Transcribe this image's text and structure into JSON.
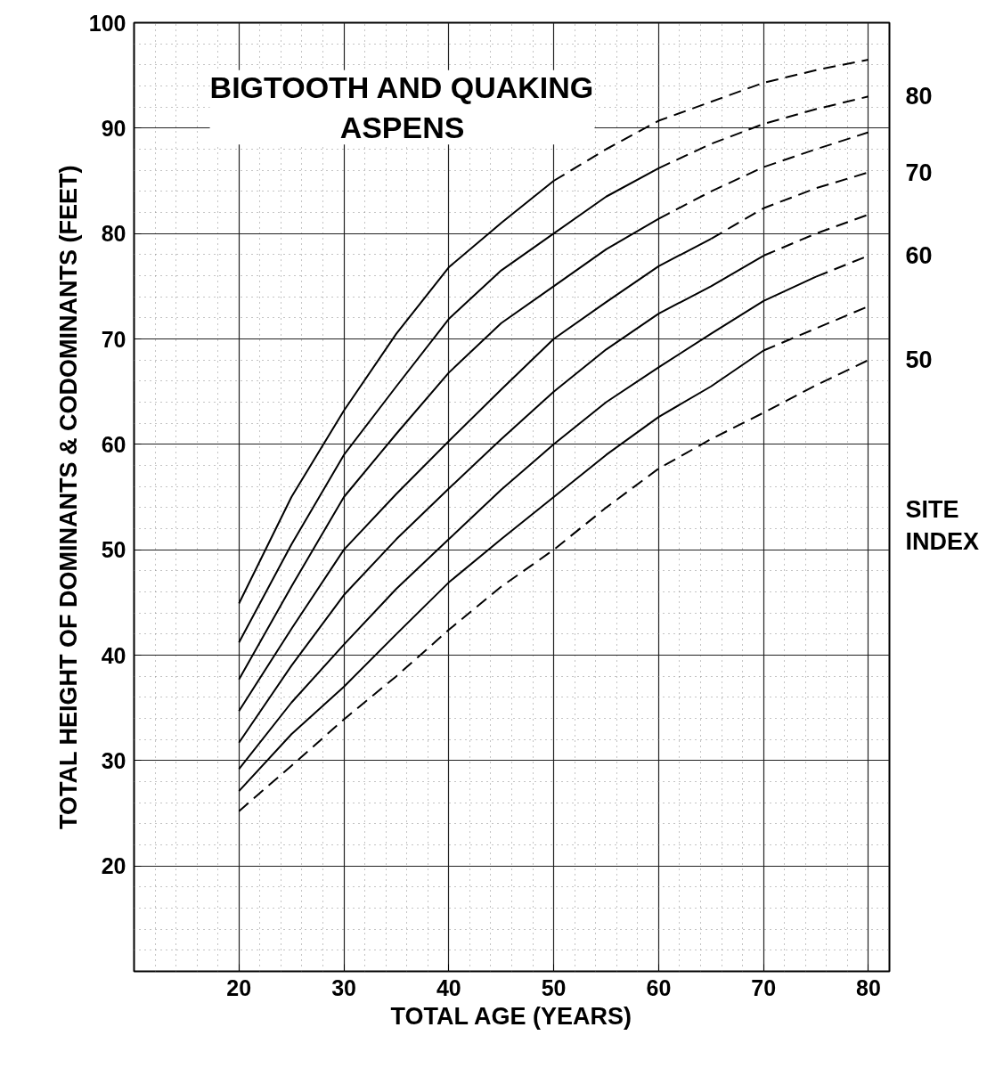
{
  "chart_data": {
    "type": "line",
    "title": "BIGTOOTH AND QUAKING\nASPENS",
    "xlabel": "TOTAL AGE (YEARS)",
    "ylabel": "TOTAL HEIGHT OF DOMINANTS & CODOMINANTS (FEET)",
    "annotations": [
      "SITE\nINDEX"
    ],
    "xlim": [
      10,
      82
    ],
    "ylim": [
      10,
      100
    ],
    "xticks": [
      20,
      30,
      40,
      50,
      60,
      70,
      80
    ],
    "yticks": [
      20,
      30,
      40,
      50,
      60,
      70,
      80,
      90,
      100
    ],
    "grid": true,
    "marker": "none",
    "series": [
      {
        "color": "#000000",
        "line_style": "solid",
        "x": [
          20,
          25,
          30,
          35,
          40,
          45,
          50
        ],
        "values": [
          44.9,
          55,
          63.2,
          70.5,
          76.8,
          81,
          85
        ]
      },
      {
        "color": "#000000",
        "line_style": "dashed",
        "x": [
          50,
          55,
          60,
          65,
          70,
          75,
          80
        ],
        "values": [
          85,
          88,
          90.7,
          92.5,
          94.3,
          95.5,
          96.5
        ]
      },
      {
        "color": "#000000",
        "line_style": "solid",
        "x": [
          20,
          25,
          30,
          35,
          40,
          45,
          50,
          55,
          60
        ],
        "values": [
          41.2,
          50.5,
          59.0,
          65.5,
          71.9,
          76.5,
          80,
          83.5,
          86.2
        ]
      },
      {
        "name": "80",
        "color": "#000000",
        "line_style": "dashed",
        "x": [
          60,
          65,
          70,
          75,
          80
        ],
        "values": [
          86.2,
          88.5,
          90.4,
          91.8,
          93.0
        ]
      },
      {
        "color": "#000000",
        "line_style": "solid",
        "x": [
          20,
          25,
          30,
          35,
          40,
          45,
          50,
          55,
          60
        ],
        "values": [
          37.7,
          46.5,
          55.0,
          61,
          66.8,
          71.5,
          75,
          78.5,
          81.4
        ]
      },
      {
        "color": "#000000",
        "line_style": "dashed",
        "x": [
          60,
          65,
          70,
          75,
          80
        ],
        "values": [
          81.4,
          84,
          86.3,
          88,
          89.6
        ]
      },
      {
        "color": "#000000",
        "line_style": "solid",
        "x": [
          20,
          25,
          30,
          35,
          40,
          45,
          50,
          55,
          60,
          65
        ],
        "values": [
          34.7,
          42.5,
          50.0,
          55.3,
          60.3,
          65.2,
          70,
          73.5,
          76.9,
          79.5
        ]
      },
      {
        "name": "70",
        "color": "#000000",
        "line_style": "dashed",
        "x": [
          65,
          70,
          75,
          80
        ],
        "values": [
          79.5,
          82.4,
          84.3,
          85.8
        ]
      },
      {
        "color": "#000000",
        "line_style": "solid",
        "x": [
          20,
          25,
          30,
          35,
          40,
          45,
          50,
          55,
          60,
          65,
          70
        ],
        "values": [
          31.7,
          39,
          45.7,
          51,
          55.8,
          60.5,
          65,
          69,
          72.4,
          75,
          77.9
        ]
      },
      {
        "color": "#000000",
        "line_style": "dashed",
        "x": [
          70,
          75,
          80
        ],
        "values": [
          77.9,
          80,
          81.8
        ]
      },
      {
        "color": "#000000",
        "line_style": "solid",
        "x": [
          20,
          25,
          30,
          35,
          40,
          45,
          50,
          55,
          60,
          65,
          70,
          75
        ],
        "values": [
          29.2,
          35.5,
          41.0,
          46.3,
          51.0,
          55.7,
          60,
          64,
          67.3,
          70.5,
          73.6,
          75.9
        ]
      },
      {
        "name": "60",
        "color": "#000000",
        "line_style": "dashed",
        "x": [
          75,
          80
        ],
        "values": [
          75.9,
          77.9
        ]
      },
      {
        "color": "#000000",
        "line_style": "solid",
        "x": [
          20,
          25,
          30,
          35,
          40,
          45,
          50,
          55,
          60,
          65,
          70
        ],
        "values": [
          27.1,
          32.5,
          37.0,
          42,
          46.9,
          51,
          55,
          59,
          62.6,
          65.5,
          68.9
        ]
      },
      {
        "color": "#000000",
        "line_style": "dashed",
        "x": [
          70,
          75,
          80
        ],
        "values": [
          68.9,
          71,
          73.1
        ]
      },
      {
        "name": "50",
        "color": "#000000",
        "line_style": "dashed",
        "x": [
          20,
          25,
          30,
          35,
          40,
          45,
          50,
          55,
          60,
          65,
          70,
          75,
          80
        ],
        "values": [
          25.2,
          29.5,
          33.9,
          38,
          42.4,
          46.5,
          50,
          54,
          57.7,
          60.5,
          63,
          65.6,
          68.0
        ]
      }
    ]
  }
}
